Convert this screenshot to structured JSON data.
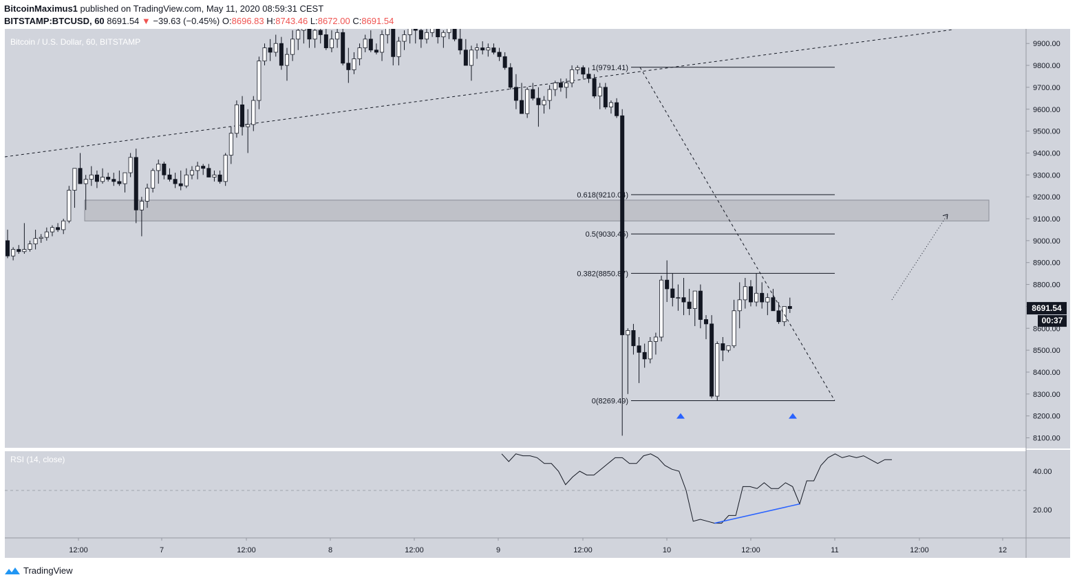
{
  "header": {
    "author": "BitcoinMaximus1",
    "published_text": " published on TradingView.com, May 11, 2020 08:59:31 CEST",
    "symbol": "BITSTAMP:BTCUSD, 60",
    "last": "8691.54",
    "change": "−39.63 (−0.45%)",
    "o_label": "O:",
    "o_value": "8696.83",
    "h_label": "H:",
    "h_value": "8743.46",
    "l_label": "L:",
    "l_value": "8672.00",
    "c_label": "C:",
    "c_value": "8691.54"
  },
  "pane_title": "Bitcoin / U.S. Dollar, 60, BITSTAMP",
  "rsi_title": "RSI (14, close)",
  "price_badge": "8691.54",
  "countdown_badge": "00:37",
  "footer": {
    "brand": "TradingView"
  },
  "colors": {
    "background": "#d1d4dc",
    "up": "#ffffff",
    "down": "#131722",
    "arrow": "#2962ff",
    "divergence": "#2962ff"
  },
  "chart_data": {
    "type": "candlestick",
    "title": "Bitcoin / U.S. Dollar, 60, BITSTAMP",
    "y_ticks": [
      9900,
      9800,
      9700,
      9600,
      9500,
      9400,
      9300,
      9200,
      9100,
      9000,
      8900,
      8800,
      8700,
      8600,
      8500,
      8400,
      8300,
      8200,
      8100
    ],
    "ylim": [
      8040,
      10000
    ],
    "x_ticks": [
      "12:00",
      "7",
      "12:00",
      "8",
      "12:00",
      "9",
      "12:00",
      "10",
      "12:00",
      "11",
      "12:00",
      "12"
    ],
    "fib_levels": [
      {
        "label": "1(9791.41)",
        "value": 9791.41
      },
      {
        "label": "0.618(9210.04)",
        "value": 9210.04
      },
      {
        "label": "0.5(9030.45)",
        "value": 9030.45
      },
      {
        "label": "0.382(8850.87)",
        "value": 8850.87
      },
      {
        "label": "0(8269.49)",
        "value": 8269.49
      }
    ],
    "resistance_zone": [
      9090,
      9185
    ],
    "candles": [
      [
        9000,
        9050,
        8920,
        8930
      ],
      [
        8930,
        8970,
        8910,
        8960
      ],
      [
        8960,
        8980,
        8940,
        8950
      ],
      [
        8950,
        9080,
        8940,
        8960
      ],
      [
        8960,
        9000,
        8950,
        8985
      ],
      [
        8985,
        9050,
        8960,
        9010
      ],
      [
        9010,
        9030,
        8990,
        9015
      ],
      [
        9015,
        9060,
        9000,
        9040
      ],
      [
        9040,
        9070,
        9020,
        9060
      ],
      [
        9060,
        9080,
        9040,
        9050
      ],
      [
        9050,
        9100,
        9030,
        9090
      ],
      [
        9090,
        9250,
        9080,
        9230
      ],
      [
        9230,
        9330,
        9150,
        9330
      ],
      [
        9330,
        9400,
        9270,
        9260
      ],
      [
        9260,
        9300,
        9140,
        9280
      ],
      [
        9280,
        9340,
        9250,
        9300
      ],
      [
        9300,
        9320,
        9240,
        9270
      ],
      [
        9270,
        9330,
        9260,
        9290
      ],
      [
        9290,
        9310,
        9270,
        9280
      ],
      [
        9280,
        9310,
        9250,
        9270
      ],
      [
        9270,
        9320,
        9250,
        9260
      ],
      [
        9260,
        9310,
        9220,
        9310
      ],
      [
        9310,
        9400,
        9290,
        9380
      ],
      [
        9380,
        9420,
        9080,
        9140
      ],
      [
        9140,
        9200,
        9020,
        9180
      ],
      [
        9180,
        9260,
        9150,
        9240
      ],
      [
        9240,
        9330,
        9220,
        9320
      ],
      [
        9320,
        9370,
        9260,
        9350
      ],
      [
        9350,
        9360,
        9280,
        9300
      ],
      [
        9300,
        9330,
        9270,
        9280
      ],
      [
        9280,
        9310,
        9240,
        9260
      ],
      [
        9260,
        9320,
        9230,
        9250
      ],
      [
        9250,
        9330,
        9240,
        9300
      ],
      [
        9300,
        9340,
        9280,
        9320
      ],
      [
        9320,
        9360,
        9280,
        9340
      ],
      [
        9340,
        9350,
        9300,
        9330
      ],
      [
        9330,
        9350,
        9290,
        9290
      ],
      [
        9290,
        9320,
        9270,
        9300
      ],
      [
        9300,
        9320,
        9260,
        9270
      ],
      [
        9270,
        9400,
        9250,
        9390
      ],
      [
        9390,
        9520,
        9350,
        9490
      ],
      [
        9490,
        9640,
        9470,
        9620
      ],
      [
        9620,
        9660,
        9480,
        9520
      ],
      [
        9520,
        9600,
        9400,
        9530
      ],
      [
        9530,
        9660,
        9500,
        9640
      ],
      [
        9640,
        9840,
        9600,
        9820
      ],
      [
        9820,
        9900,
        9800,
        9880
      ],
      [
        9880,
        9920,
        9820,
        9860
      ],
      [
        9860,
        9940,
        9840,
        9900
      ],
      [
        9900,
        9930,
        9780,
        9800
      ],
      [
        9800,
        9880,
        9730,
        9850
      ],
      [
        9850,
        9960,
        9820,
        9920
      ],
      [
        9920,
        9980,
        9870,
        9960
      ],
      [
        9960,
        10000,
        9900,
        9990
      ],
      [
        9990,
        10000,
        9880,
        9920
      ],
      [
        9920,
        9990,
        9880,
        9960
      ],
      [
        9960,
        10000,
        9900,
        9940
      ],
      [
        9940,
        9990,
        9870,
        9880
      ],
      [
        9880,
        9960,
        9860,
        9920
      ],
      [
        9920,
        9990,
        9880,
        9950
      ],
      [
        9950,
        9980,
        9800,
        9810
      ],
      [
        9810,
        9880,
        9720,
        9780
      ],
      [
        9780,
        9860,
        9760,
        9830
      ],
      [
        9830,
        9900,
        9800,
        9880
      ],
      [
        9880,
        9940,
        9860,
        9920
      ],
      [
        9920,
        9960,
        9860,
        9870
      ],
      [
        9870,
        9900,
        9850,
        9860
      ],
      [
        9860,
        9960,
        9820,
        9940
      ],
      [
        9940,
        10000,
        9900,
        9980
      ],
      [
        9980,
        10000,
        9800,
        9840
      ],
      [
        9840,
        9930,
        9800,
        9910
      ],
      [
        9910,
        9960,
        9870,
        9940
      ],
      [
        9940,
        10000,
        9900,
        9970
      ],
      [
        9970,
        10000,
        9900,
        9960
      ],
      [
        9960,
        10000,
        9880,
        9920
      ],
      [
        9920,
        9990,
        9900,
        9950
      ],
      [
        9950,
        10000,
        9930,
        9990
      ],
      [
        9990,
        10000,
        9900,
        9930
      ],
      [
        9930,
        9960,
        9880,
        9950
      ],
      [
        9950,
        10000,
        9920,
        9980
      ],
      [
        9980,
        10000,
        9910,
        9920
      ],
      [
        9920,
        9990,
        9850,
        9870
      ],
      [
        9870,
        9920,
        9800,
        9800
      ],
      [
        9800,
        9890,
        9730,
        9870
      ],
      [
        9870,
        9900,
        9830,
        9880
      ],
      [
        9880,
        9910,
        9850,
        9870
      ],
      [
        9870,
        9900,
        9840,
        9880
      ],
      [
        9880,
        9900,
        9850,
        9860
      ],
      [
        9860,
        9880,
        9820,
        9840
      ],
      [
        9840,
        9860,
        9780,
        9790
      ],
      [
        9790,
        9810,
        9690,
        9700
      ],
      [
        9700,
        9760,
        9600,
        9640
      ],
      [
        9640,
        9720,
        9580,
        9580
      ],
      [
        9580,
        9700,
        9560,
        9690
      ],
      [
        9690,
        9720,
        9640,
        9650
      ],
      [
        9650,
        9700,
        9520,
        9620
      ],
      [
        9620,
        9660,
        9580,
        9640
      ],
      [
        9640,
        9710,
        9600,
        9690
      ],
      [
        9690,
        9730,
        9660,
        9720
      ],
      [
        9720,
        9740,
        9680,
        9700
      ],
      [
        9700,
        9740,
        9650,
        9720
      ],
      [
        9720,
        9800,
        9700,
        9780
      ],
      [
        9780,
        9800,
        9760,
        9790
      ],
      [
        9790,
        9800,
        9740,
        9760
      ],
      [
        9760,
        9790,
        9720,
        9740
      ],
      [
        9740,
        9760,
        9650,
        9660
      ],
      [
        9660,
        9720,
        9600,
        9700
      ],
      [
        9700,
        9720,
        9600,
        9610
      ],
      [
        9610,
        9640,
        9580,
        9630
      ],
      [
        9630,
        9650,
        9560,
        9570
      ],
      [
        9570,
        9600,
        8110,
        8570
      ],
      [
        8570,
        8600,
        8300,
        8590
      ],
      [
        8590,
        8620,
        8480,
        8520
      ],
      [
        8520,
        8560,
        8350,
        8490
      ],
      [
        8490,
        8530,
        8420,
        8460
      ],
      [
        8460,
        8560,
        8440,
        8540
      ],
      [
        8540,
        8580,
        8480,
        8560
      ],
      [
        8560,
        8840,
        8540,
        8820
      ],
      [
        8820,
        8910,
        8720,
        8780
      ],
      [
        8780,
        8850,
        8700,
        8740
      ],
      [
        8740,
        8800,
        8680,
        8740
      ],
      [
        8740,
        8830,
        8660,
        8720
      ],
      [
        8720,
        8780,
        8660,
        8690
      ],
      [
        8690,
        8760,
        8610,
        8770
      ],
      [
        8770,
        8800,
        8600,
        8640
      ],
      [
        8640,
        8660,
        8550,
        8620
      ],
      [
        8620,
        8660,
        8280,
        8290
      ],
      [
        8290,
        8540,
        8270,
        8530
      ],
      [
        8530,
        8560,
        8450,
        8500
      ],
      [
        8500,
        8520,
        8490,
        8520
      ],
      [
        8520,
        8730,
        8510,
        8680
      ],
      [
        8680,
        8810,
        8600,
        8730
      ],
      [
        8730,
        8830,
        8690,
        8790
      ],
      [
        8790,
        8820,
        8700,
        8720
      ],
      [
        8720,
        8850,
        8700,
        8760
      ],
      [
        8760,
        8810,
        8690,
        8720
      ],
      [
        8720,
        8760,
        8660,
        8740
      ],
      [
        8740,
        8780,
        8680,
        8680
      ],
      [
        8680,
        8720,
        8620,
        8630
      ],
      [
        8630,
        8690,
        8610,
        8700
      ],
      [
        8700,
        8740,
        8670,
        8690
      ]
    ],
    "rsi": {
      "name": "RSI (14, close)",
      "y_ticks": [
        40,
        20
      ],
      "ylim": [
        5,
        55
      ],
      "midline": 30,
      "values": [
        49,
        45,
        49,
        48,
        48,
        47,
        44,
        44,
        40,
        33,
        37,
        40,
        38,
        38,
        41,
        44,
        47,
        47,
        44,
        44,
        48,
        49,
        47,
        43,
        41,
        40,
        30,
        14,
        15,
        14,
        13,
        13,
        17,
        17,
        32,
        32,
        31,
        34,
        31,
        31,
        34,
        32,
        23,
        35,
        35,
        43,
        47,
        49,
        47,
        48,
        47,
        48,
        46,
        44,
        46,
        46
      ]
    },
    "divergence": {
      "rsi_from": 13,
      "rsi_to": 23
    }
  }
}
